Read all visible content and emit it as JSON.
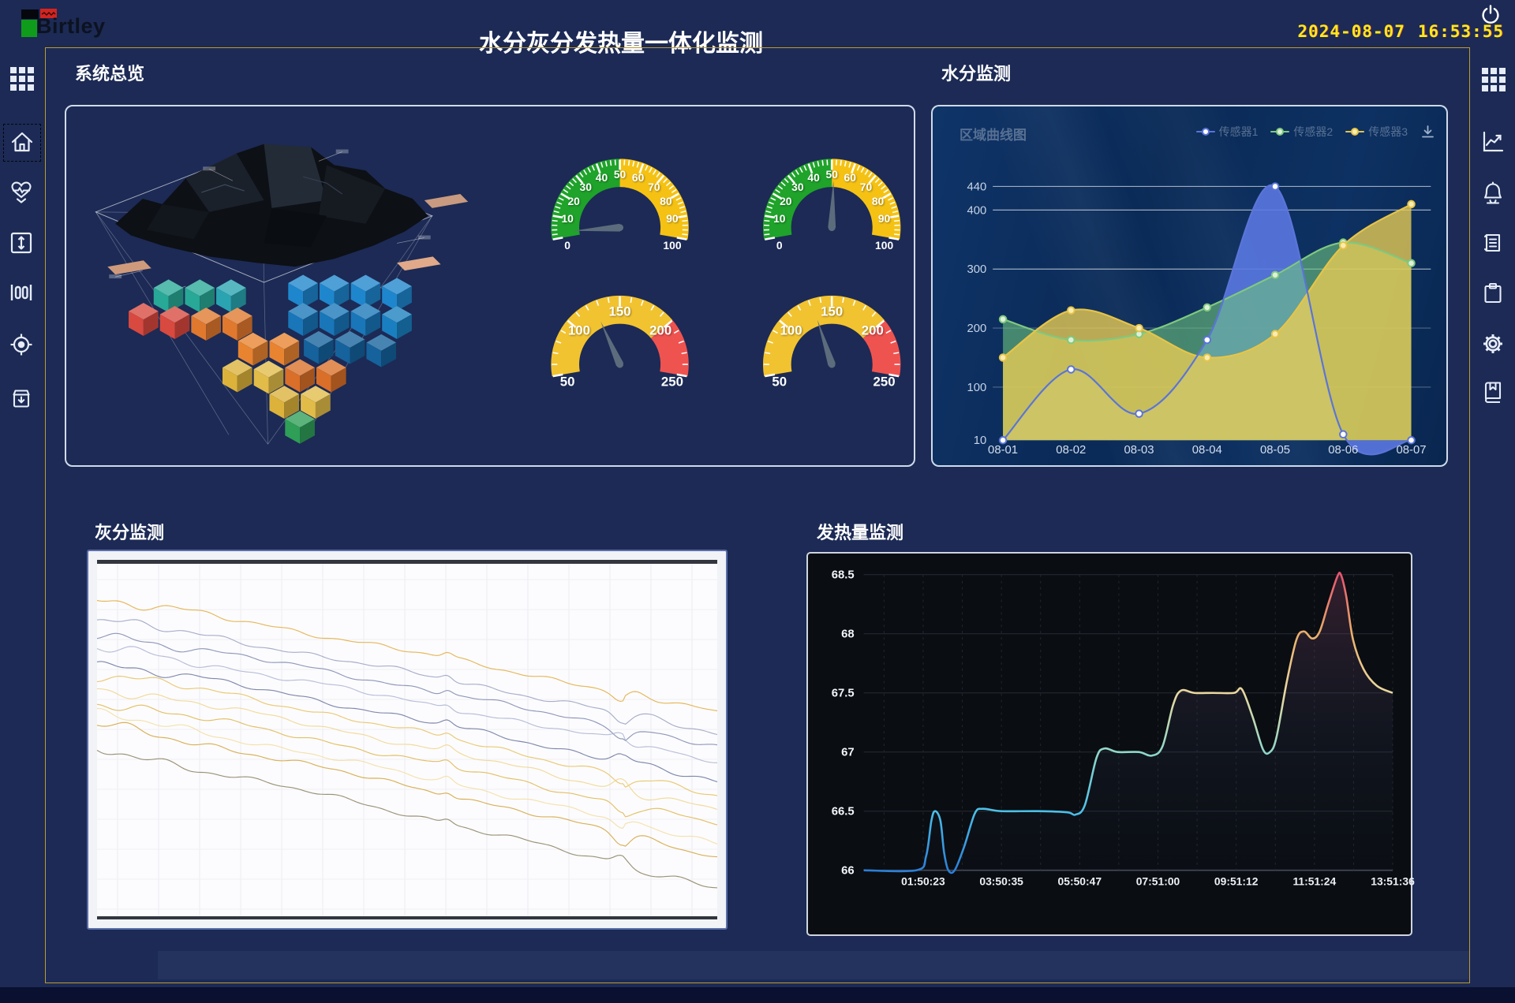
{
  "header": {
    "logo_text": "Birtley",
    "title": "水分灰分发热量一体化监测",
    "date": "2024-08-07",
    "time": "16:53:55",
    "power_icon": "power-icon"
  },
  "sidebars": {
    "left": [
      "grid",
      "home",
      "health-monitor",
      "vertical-expand",
      "gauge-ruler",
      "target",
      "archive-download"
    ],
    "left_active": "home",
    "right": [
      "grid",
      "trend-chart",
      "bell",
      "report",
      "clipboard",
      "gear",
      "bookmark"
    ]
  },
  "panels": {
    "system": {
      "title": "系统总览"
    },
    "moisture": {
      "title": "水分监测",
      "chart_label": "区域曲线图",
      "legend": [
        "传感器1",
        "传感器2",
        "传感器3"
      ],
      "download_icon": "download-icon"
    },
    "ash": {
      "title": "灰分监测"
    },
    "calorific": {
      "title": "发热量监测"
    }
  },
  "colors": {
    "background": "#1c2a55",
    "gold_border": "#bd9a2f",
    "panel_border": "#e1e9f6",
    "clock": "#ffe81a",
    "gauge_green": "#1fa32a",
    "gauge_yellow": "#f5c214",
    "gauge_red": "#ef5350",
    "series_blue": "#5b74d8",
    "series_green": "#7fc97f",
    "series_yellow": "#e7c447"
  },
  "chart_data": [
    {
      "id": "moisture_area",
      "type": "area",
      "title": "区域曲线图",
      "x": [
        "08-01",
        "08-02",
        "08-03",
        "08-04",
        "08-05",
        "08-06",
        "08-07"
      ],
      "yticks": [
        10,
        100,
        200,
        300,
        400,
        440
      ],
      "ylim": [
        10,
        440
      ],
      "grid": true,
      "legend_position": "top-right",
      "series": [
        {
          "name": "传感器1",
          "color": "#5b74d8",
          "fill": "rgba(90,120,225,0.9)",
          "point_fill": "#ffffff",
          "values": [
            10,
            130,
            55,
            180,
            440,
            20,
            10
          ]
        },
        {
          "name": "传感器2",
          "color": "#7fc97f",
          "fill": "rgba(110,195,125,0.6)",
          "point_fill": "#dff0d8",
          "values": [
            215,
            180,
            190,
            235,
            290,
            345,
            310
          ]
        },
        {
          "name": "传感器3",
          "color": "#e7c447",
          "fill": "rgba(235,205,85,0.78)",
          "point_fill": "#f8ecb2",
          "values": [
            150,
            230,
            200,
            150,
            190,
            340,
            410
          ]
        }
      ]
    },
    {
      "id": "gauges",
      "type": "gauge-group",
      "items": [
        {
          "min": 0,
          "max": 100,
          "value": 3,
          "minor_step": 2,
          "major_step": 10,
          "band_labels": [
            10,
            20,
            30,
            40,
            50,
            60,
            70,
            80,
            90
          ],
          "end_labels": [
            "0",
            "100"
          ],
          "bands": [
            {
              "from": 0,
              "to": 50,
              "color": "#1fa32a"
            },
            {
              "from": 50,
              "to": 100,
              "color": "#f5c214"
            }
          ]
        },
        {
          "min": 0,
          "max": 100,
          "value": 51,
          "minor_step": 2,
          "major_step": 10,
          "band_labels": [
            10,
            20,
            30,
            40,
            50,
            60,
            70,
            80,
            90
          ],
          "end_labels": [
            "0",
            "100"
          ],
          "bands": [
            {
              "from": 0,
              "to": 50,
              "color": "#1fa32a"
            },
            {
              "from": 50,
              "to": 100,
              "color": "#f5c214"
            }
          ]
        },
        {
          "min": 50,
          "max": 250,
          "value": 126,
          "minor_step": 10,
          "major_step": 50,
          "band_labels": [
            100,
            150,
            200
          ],
          "end_labels": [
            "50",
            "250"
          ],
          "bands": [
            {
              "from": 50,
              "to": 200,
              "color": "#f2c330"
            },
            {
              "from": 200,
              "to": 250,
              "color": "#ef5350"
            }
          ]
        },
        {
          "min": 50,
          "max": 250,
          "value": 132,
          "minor_step": 10,
          "major_step": 50,
          "band_labels": [
            100,
            150,
            200
          ],
          "end_labels": [
            "50",
            "250"
          ],
          "bands": [
            {
              "from": 50,
              "to": 200,
              "color": "#f2c330"
            },
            {
              "from": 200,
              "to": 250,
              "color": "#ef5350"
            }
          ]
        }
      ]
    },
    {
      "id": "calorific_line",
      "type": "line",
      "yticks": [
        66,
        66.5,
        67,
        67.5,
        68,
        68.5
      ],
      "ylim": [
        66,
        68.5
      ],
      "xticks": [
        "01:50:23",
        "03:50:35",
        "05:50:47",
        "07:51:00",
        "09:51:12",
        "11:51:24",
        "13:51:36"
      ],
      "grid": true,
      "gradient_stops": [
        "#2b7fd8",
        "#4cc0e8",
        "#8fd8c8",
        "#ead9a0",
        "#eab06a",
        "#e65570"
      ],
      "points": [
        [
          0,
          66
        ],
        [
          0.1,
          66
        ],
        [
          0.118,
          66.12
        ],
        [
          0.128,
          66.42
        ],
        [
          0.135,
          66.5
        ],
        [
          0.145,
          66.42
        ],
        [
          0.152,
          66.15
        ],
        [
          0.16,
          66.0
        ],
        [
          0.172,
          66.0
        ],
        [
          0.19,
          66.2
        ],
        [
          0.21,
          66.48
        ],
        [
          0.225,
          66.52
        ],
        [
          0.26,
          66.5
        ],
        [
          0.33,
          66.5
        ],
        [
          0.385,
          66.49
        ],
        [
          0.4,
          66.47
        ],
        [
          0.418,
          66.55
        ],
        [
          0.44,
          66.95
        ],
        [
          0.455,
          67.03
        ],
        [
          0.48,
          67.0
        ],
        [
          0.52,
          67.0
        ],
        [
          0.545,
          66.97
        ],
        [
          0.565,
          67.05
        ],
        [
          0.585,
          67.4
        ],
        [
          0.6,
          67.52
        ],
        [
          0.625,
          67.5
        ],
        [
          0.66,
          67.5
        ],
        [
          0.7,
          67.5
        ],
        [
          0.715,
          67.53
        ],
        [
          0.735,
          67.3
        ],
        [
          0.755,
          67.02
        ],
        [
          0.768,
          67.0
        ],
        [
          0.78,
          67.12
        ],
        [
          0.8,
          67.6
        ],
        [
          0.818,
          67.95
        ],
        [
          0.832,
          68.02
        ],
        [
          0.848,
          67.96
        ],
        [
          0.862,
          68.02
        ],
        [
          0.878,
          68.25
        ],
        [
          0.895,
          68.48
        ],
        [
          0.902,
          68.5
        ],
        [
          0.912,
          68.32
        ],
        [
          0.925,
          67.95
        ],
        [
          0.945,
          67.7
        ],
        [
          0.97,
          67.56
        ],
        [
          1.0,
          67.5
        ]
      ]
    },
    {
      "id": "ash_multiline",
      "type": "multiline",
      "grid": true,
      "note": "noisy descending trend lines, y0/y1 are fractions of plot height at left/right edges",
      "lines": [
        {
          "color": "#e2aa3c",
          "y0": 0.1,
          "y1": 0.42
        },
        {
          "color": "#96a0c0",
          "y0": 0.16,
          "y1": 0.48
        },
        {
          "color": "#7b86ac",
          "y0": 0.2,
          "y1": 0.52
        },
        {
          "color": "#aab3d0",
          "y0": 0.24,
          "y1": 0.56
        },
        {
          "color": "#68739c",
          "y0": 0.28,
          "y1": 0.62
        },
        {
          "color": "#e6c05a",
          "y0": 0.31,
          "y1": 0.66
        },
        {
          "color": "#f0d388",
          "y0": 0.35,
          "y1": 0.7
        },
        {
          "color": "#dfb54a",
          "y0": 0.39,
          "y1": 0.74
        },
        {
          "color": "#f2dc9e",
          "y0": 0.43,
          "y1": 0.79
        },
        {
          "color": "#d2a238",
          "y0": 0.46,
          "y1": 0.83
        },
        {
          "color": "#8a7f5e",
          "y0": 0.53,
          "y1": 0.92
        }
      ]
    }
  ]
}
